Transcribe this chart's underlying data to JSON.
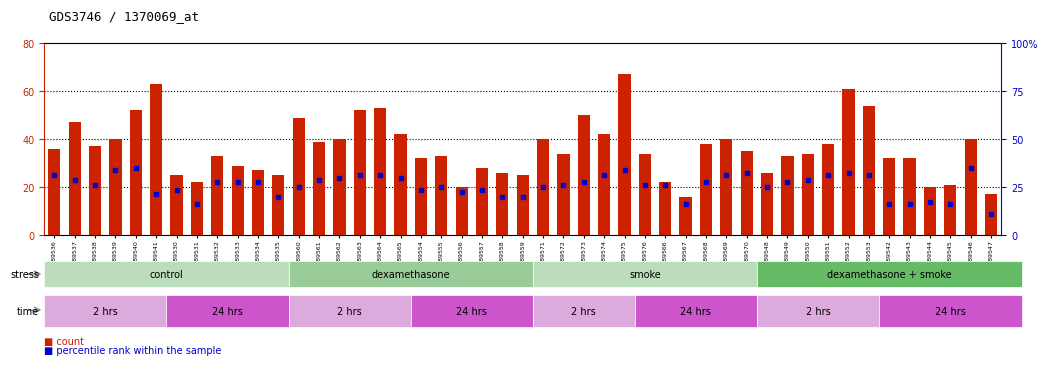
{
  "title": "GDS3746 / 1370069_at",
  "samples": [
    "GSM389536",
    "GSM389537",
    "GSM389538",
    "GSM389539",
    "GSM389540",
    "GSM389541",
    "GSM389530",
    "GSM389531",
    "GSM389532",
    "GSM389533",
    "GSM389534",
    "GSM389535",
    "GSM389560",
    "GSM389561",
    "GSM389562",
    "GSM389563",
    "GSM389564",
    "GSM389565",
    "GSM389554",
    "GSM389555",
    "GSM389556",
    "GSM389557",
    "GSM389558",
    "GSM389559",
    "GSM389571",
    "GSM389572",
    "GSM389573",
    "GSM389574",
    "GSM389575",
    "GSM389576",
    "GSM389566",
    "GSM389567",
    "GSM389568",
    "GSM389569",
    "GSM389570",
    "GSM389548",
    "GSM389549",
    "GSM389550",
    "GSM389551",
    "GSM389552",
    "GSM389553",
    "GSM389542",
    "GSM389543",
    "GSM389544",
    "GSM389545",
    "GSM389546",
    "GSM389547"
  ],
  "counts": [
    36,
    47,
    37,
    40,
    52,
    63,
    25,
    22,
    33,
    29,
    27,
    25,
    49,
    39,
    40,
    52,
    53,
    42,
    32,
    33,
    20,
    28,
    26,
    25,
    40,
    34,
    50,
    42,
    67,
    34,
    22,
    16,
    38,
    40,
    35,
    26,
    33,
    34,
    38,
    61,
    54,
    32,
    32,
    20,
    21,
    40,
    17
  ],
  "percentile_ranks": [
    25,
    23,
    21,
    27,
    28,
    17,
    19,
    13,
    22,
    22,
    22,
    16,
    20,
    23,
    24,
    25,
    25,
    24,
    19,
    20,
    18,
    19,
    16,
    16,
    20,
    21,
    22,
    25,
    27,
    21,
    21,
    13,
    22,
    25,
    26,
    20,
    22,
    23,
    25,
    26,
    25,
    13,
    13,
    14,
    13,
    28,
    9
  ],
  "ylim_left": [
    0,
    80
  ],
  "ylim_right": [
    0,
    100
  ],
  "yticks_left": [
    0,
    20,
    40,
    60,
    80
  ],
  "yticks_right": [
    0,
    25,
    50,
    75,
    100
  ],
  "bar_color": "#CC2200",
  "dot_color": "#0000CC",
  "stress_groups": [
    {
      "label": "control",
      "start": 0,
      "end": 11,
      "color": "#BBDDBB"
    },
    {
      "label": "dexamethasone",
      "start": 12,
      "end": 23,
      "color": "#99CC99"
    },
    {
      "label": "smoke",
      "start": 24,
      "end": 34,
      "color": "#BBDDBB"
    },
    {
      "label": "dexamethasone + smoke",
      "start": 35,
      "end": 47,
      "color": "#66BB66"
    }
  ],
  "time_groups": [
    {
      "label": "2 hrs",
      "start": 0,
      "end": 5,
      "color": "#DDAADD"
    },
    {
      "label": "24 hrs",
      "start": 6,
      "end": 11,
      "color": "#CC55CC"
    },
    {
      "label": "2 hrs",
      "start": 12,
      "end": 17,
      "color": "#DDAADD"
    },
    {
      "label": "24 hrs",
      "start": 18,
      "end": 23,
      "color": "#CC55CC"
    },
    {
      "label": "2 hrs",
      "start": 24,
      "end": 28,
      "color": "#DDAADD"
    },
    {
      "label": "24 hrs",
      "start": 29,
      "end": 34,
      "color": "#CC55CC"
    },
    {
      "label": "2 hrs",
      "start": 35,
      "end": 40,
      "color": "#DDAADD"
    },
    {
      "label": "24 hrs",
      "start": 41,
      "end": 47,
      "color": "#CC55CC"
    }
  ],
  "stress_label": "stress",
  "time_label": "time",
  "legend_count_label": "count",
  "legend_pct_label": "percentile rank within the sample"
}
